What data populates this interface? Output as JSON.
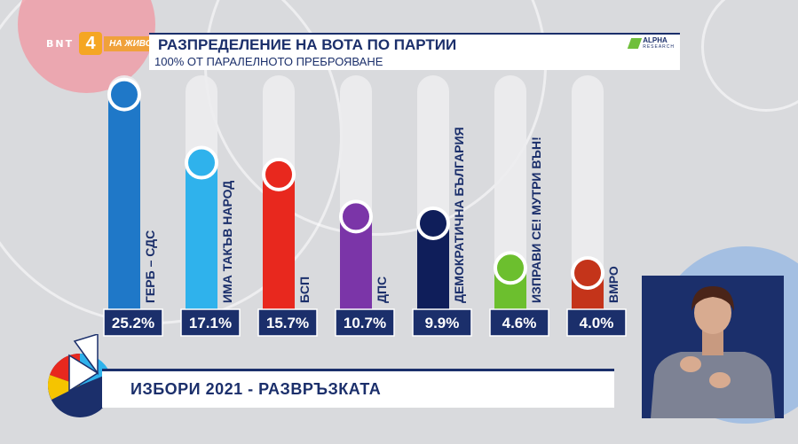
{
  "channel": {
    "network": "BNT",
    "channel_number": "4",
    "live_label": "НА ЖИВО"
  },
  "header": {
    "title": "РАЗПРЕДЕЛЕНИЕ НА ВОТА ПО ПАРТИИ",
    "subtitle": "100% ОТ ПАРАЛЕЛНОТО ПРЕБРОЯВАНЕ",
    "sponsor": "ALPHA",
    "sponsor_sub": "RESEARCH"
  },
  "banner": {
    "text": "ИЗБОРИ 2021 - РАЗВРЪЗКАТА"
  },
  "chart_data": {
    "type": "bar",
    "title": "РАЗПРЕДЕЛЕНИЕ НА ВОТА ПО ПАРТИИ",
    "subtitle": "100% ОТ ПАРАЛЕЛНОТО ПРЕБРОЯВАНЕ",
    "categories": [
      "ГЕРБ – СДС",
      "ИМА ТАКЪВ НАРОД",
      "БСП",
      "ДПС",
      "ДЕМОКРАТИЧНА БЪЛГАРИЯ",
      "ИЗПРАВИ СЕ! МУТРИ ВЪН!",
      "ВМРО"
    ],
    "values": [
      25.2,
      17.1,
      15.7,
      10.7,
      9.9,
      4.6,
      4.0
    ],
    "value_labels": [
      "25.2%",
      "17.1%",
      "15.7%",
      "10.7%",
      "9.9%",
      "4.6%",
      "4.0%"
    ],
    "colors": [
      "#1f78c8",
      "#2fb2ec",
      "#e8281e",
      "#7b35a8",
      "#0f1e5a",
      "#6cbf2e",
      "#c4341a"
    ],
    "ylim": [
      0,
      100
    ],
    "xlabel": "",
    "ylabel": ""
  }
}
